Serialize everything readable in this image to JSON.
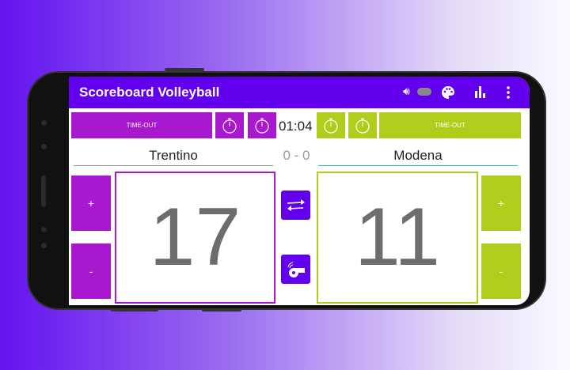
{
  "app_title": "Scoreboard Volleyball",
  "toolbar": {
    "sound_icon": "volume-icon",
    "palette_icon": "palette-icon",
    "stats_icon": "bar-chart-icon",
    "menu_icon": "more-vert-icon"
  },
  "timeout_label": "TIME-OUT",
  "timer": "01:04",
  "sets": "0 - 0",
  "team_left": {
    "name": "Trentino",
    "score": "17",
    "color": "#a818cf"
  },
  "team_right": {
    "name": "Modena",
    "score": "11",
    "color": "#b1cc1b"
  },
  "plus": "+",
  "minus": "-",
  "accent": "#6200ee"
}
